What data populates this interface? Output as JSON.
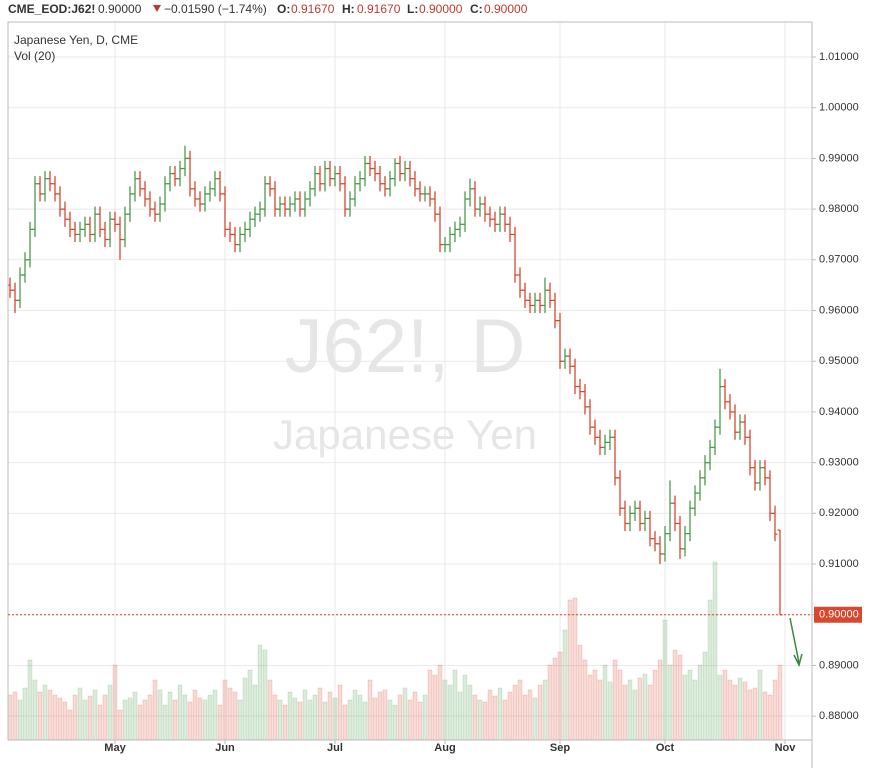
{
  "header": {
    "symbol": "CME_EOD:J62!",
    "last": "0.90000",
    "change": "−0.01590 (−1.74%)",
    "open_label": "O:",
    "open": "0.91670",
    "high_label": "H:",
    "high": "0.91670",
    "low_label": "L:",
    "low": "0.90000",
    "close_label": "C:",
    "close": "0.90000"
  },
  "chart_data": {
    "type": "ohlc",
    "title": "Japanese Yen, D, CME",
    "subtitle": "Vol (20)",
    "watermark": "J62!, D",
    "watermark_subtitle": "Japanese Yen",
    "up_color": "#4a9a4a",
    "down_color": "#d9472f",
    "grid": true,
    "last_price": 0.9,
    "last_price_label": "0.90000",
    "ylim": [
      0.8753,
      1.0169
    ],
    "yticks": [
      {
        "value": 0.88,
        "label": "0.88000"
      },
      {
        "value": 0.89,
        "label": "0.89000"
      },
      {
        "value": 0.9,
        "label": "0.90000"
      },
      {
        "value": 0.91,
        "label": "0.91000"
      },
      {
        "value": 0.92,
        "label": "0.92000"
      },
      {
        "value": 0.93,
        "label": "0.93000"
      },
      {
        "value": 0.94,
        "label": "0.94000"
      },
      {
        "value": 0.95,
        "label": "0.95000"
      },
      {
        "value": 0.96,
        "label": "0.96000"
      },
      {
        "value": 0.97,
        "label": "0.97000"
      },
      {
        "value": 0.98,
        "label": "0.98000"
      },
      {
        "value": 0.99,
        "label": "0.99000"
      },
      {
        "value": 1.0,
        "label": "1.00000"
      },
      {
        "value": 1.01,
        "label": "1.01000"
      }
    ],
    "xlim": [
      -0.4,
      160.4
    ],
    "xticks": [
      {
        "value": 21,
        "label": "May"
      },
      {
        "value": 43,
        "label": "Jun"
      },
      {
        "value": 65,
        "label": "Jul"
      },
      {
        "value": 87,
        "label": "Aug"
      },
      {
        "value": 110,
        "label": "Sep"
      },
      {
        "value": 131,
        "label": "Oct"
      },
      {
        "value": 155,
        "label": "Nov"
      }
    ],
    "volume_lim": [
      0,
      200
    ],
    "ohlc": [
      [
        0.965,
        0.9665,
        0.9625,
        0.964
      ],
      [
        0.964,
        0.9655,
        0.9595,
        0.962
      ],
      [
        0.962,
        0.9685,
        0.9605,
        0.967
      ],
      [
        0.967,
        0.9715,
        0.9655,
        0.97
      ],
      [
        0.97,
        0.9775,
        0.9685,
        0.976
      ],
      [
        0.976,
        0.9865,
        0.9745,
        0.985
      ],
      [
        0.985,
        0.9865,
        0.9815,
        0.983
      ],
      [
        0.983,
        0.9875,
        0.9815,
        0.986
      ],
      [
        0.986,
        0.9875,
        0.9835,
        0.985
      ],
      [
        0.985,
        0.9865,
        0.9815,
        0.983
      ],
      [
        0.983,
        0.9845,
        0.9785,
        0.98
      ],
      [
        0.98,
        0.9815,
        0.9765,
        0.978
      ],
      [
        0.978,
        0.9795,
        0.9745,
        0.976
      ],
      [
        0.976,
        0.9775,
        0.9735,
        0.975
      ],
      [
        0.975,
        0.9775,
        0.9735,
        0.976
      ],
      [
        0.976,
        0.9785,
        0.9745,
        0.977
      ],
      [
        0.977,
        0.9785,
        0.9735,
        0.975
      ],
      [
        0.975,
        0.9805,
        0.9735,
        0.979
      ],
      [
        0.979,
        0.9805,
        0.9745,
        0.976
      ],
      [
        0.976,
        0.9775,
        0.9725,
        0.974
      ],
      [
        0.974,
        0.9795,
        0.9725,
        0.978
      ],
      [
        0.978,
        0.9795,
        0.9755,
        0.977
      ],
      [
        0.977,
        0.9785,
        0.97,
        0.974
      ],
      [
        0.974,
        0.9805,
        0.9725,
        0.979
      ],
      [
        0.979,
        0.9845,
        0.9775,
        0.983
      ],
      [
        0.983,
        0.9875,
        0.9815,
        0.986
      ],
      [
        0.986,
        0.9875,
        0.9825,
        0.984
      ],
      [
        0.984,
        0.9855,
        0.9805,
        0.982
      ],
      [
        0.982,
        0.9835,
        0.9785,
        0.98
      ],
      [
        0.98,
        0.9815,
        0.9775,
        0.979
      ],
      [
        0.979,
        0.9825,
        0.9775,
        0.981
      ],
      [
        0.981,
        0.9865,
        0.9795,
        0.985
      ],
      [
        0.985,
        0.9885,
        0.9835,
        0.987
      ],
      [
        0.987,
        0.9885,
        0.9845,
        0.986
      ],
      [
        0.986,
        0.9895,
        0.9845,
        0.988
      ],
      [
        0.988,
        0.9925,
        0.9865,
        0.99
      ],
      [
        0.99,
        0.9915,
        0.9825,
        0.984
      ],
      [
        0.984,
        0.9855,
        0.9805,
        0.982
      ],
      [
        0.982,
        0.9835,
        0.9795,
        0.981
      ],
      [
        0.981,
        0.9845,
        0.9795,
        0.983
      ],
      [
        0.983,
        0.9855,
        0.9815,
        0.984
      ],
      [
        0.984,
        0.9875,
        0.9825,
        0.986
      ],
      [
        0.986,
        0.9875,
        0.9815,
        0.983
      ],
      [
        0.983,
        0.9845,
        0.9745,
        0.976
      ],
      [
        0.976,
        0.9775,
        0.9735,
        0.975
      ],
      [
        0.975,
        0.9765,
        0.9715,
        0.973
      ],
      [
        0.973,
        0.9765,
        0.9715,
        0.975
      ],
      [
        0.975,
        0.9775,
        0.9735,
        0.976
      ],
      [
        0.976,
        0.9795,
        0.9745,
        0.978
      ],
      [
        0.978,
        0.9805,
        0.9765,
        0.979
      ],
      [
        0.979,
        0.9815,
        0.9775,
        0.98
      ],
      [
        0.98,
        0.9865,
        0.9785,
        0.985
      ],
      [
        0.985,
        0.9865,
        0.9825,
        0.984
      ],
      [
        0.984,
        0.9855,
        0.9785,
        0.98
      ],
      [
        0.98,
        0.9825,
        0.9785,
        0.981
      ],
      [
        0.981,
        0.9825,
        0.9785,
        0.98
      ],
      [
        0.98,
        0.9825,
        0.9785,
        0.981
      ],
      [
        0.981,
        0.9835,
        0.9795,
        0.982
      ],
      [
        0.982,
        0.9835,
        0.9785,
        0.98
      ],
      [
        0.98,
        0.9835,
        0.9785,
        0.982
      ],
      [
        0.982,
        0.9855,
        0.9805,
        0.984
      ],
      [
        0.984,
        0.9885,
        0.9825,
        0.987
      ],
      [
        0.987,
        0.9885,
        0.9835,
        0.985
      ],
      [
        0.985,
        0.9895,
        0.9835,
        0.988
      ],
      [
        0.988,
        0.9895,
        0.9845,
        0.986
      ],
      [
        0.986,
        0.9885,
        0.9845,
        0.987
      ],
      [
        0.987,
        0.9885,
        0.9835,
        0.985
      ],
      [
        0.985,
        0.9865,
        0.9785,
        0.98
      ],
      [
        0.98,
        0.9835,
        0.9785,
        0.982
      ],
      [
        0.982,
        0.9865,
        0.9805,
        0.985
      ],
      [
        0.985,
        0.9875,
        0.9835,
        0.986
      ],
      [
        0.986,
        0.9905,
        0.9845,
        0.989
      ],
      [
        0.989,
        0.9905,
        0.9865,
        0.988
      ],
      [
        0.988,
        0.9895,
        0.9855,
        0.987
      ],
      [
        0.987,
        0.9885,
        0.9835,
        0.985
      ],
      [
        0.985,
        0.9865,
        0.9825,
        0.984
      ],
      [
        0.984,
        0.9875,
        0.9825,
        0.986
      ],
      [
        0.986,
        0.99,
        0.9845,
        0.989
      ],
      [
        0.989,
        0.9905,
        0.9855,
        0.987
      ],
      [
        0.987,
        0.9895,
        0.9855,
        0.988
      ],
      [
        0.988,
        0.9895,
        0.9845,
        0.986
      ],
      [
        0.986,
        0.9875,
        0.9825,
        0.984
      ],
      [
        0.984,
        0.9855,
        0.9815,
        0.983
      ],
      [
        0.983,
        0.9845,
        0.9815,
        0.983
      ],
      [
        0.983,
        0.9845,
        0.9805,
        0.982
      ],
      [
        0.982,
        0.9835,
        0.9775,
        0.979
      ],
      [
        0.979,
        0.9805,
        0.9715,
        0.973
      ],
      [
        0.973,
        0.9745,
        0.9715,
        0.973
      ],
      [
        0.973,
        0.9765,
        0.9715,
        0.975
      ],
      [
        0.975,
        0.9775,
        0.9735,
        0.976
      ],
      [
        0.976,
        0.9785,
        0.9745,
        0.977
      ],
      [
        0.977,
        0.9835,
        0.9755,
        0.982
      ],
      [
        0.982,
        0.986,
        0.9805,
        0.984
      ],
      [
        0.984,
        0.9855,
        0.9785,
        0.98
      ],
      [
        0.98,
        0.9825,
        0.9785,
        0.981
      ],
      [
        0.981,
        0.9825,
        0.9775,
        0.979
      ],
      [
        0.979,
        0.9805,
        0.9765,
        0.978
      ],
      [
        0.978,
        0.9795,
        0.9755,
        0.977
      ],
      [
        0.977,
        0.9805,
        0.9755,
        0.979
      ],
      [
        0.979,
        0.9805,
        0.9755,
        0.977
      ],
      [
        0.977,
        0.9785,
        0.9735,
        0.975
      ],
      [
        0.975,
        0.9765,
        0.9655,
        0.967
      ],
      [
        0.967,
        0.9685,
        0.9625,
        0.964
      ],
      [
        0.964,
        0.9655,
        0.9605,
        0.962
      ],
      [
        0.962,
        0.9635,
        0.9595,
        0.961
      ],
      [
        0.961,
        0.9635,
        0.9595,
        0.962
      ],
      [
        0.962,
        0.9635,
        0.9595,
        0.961
      ],
      [
        0.961,
        0.9665,
        0.9595,
        0.964
      ],
      [
        0.964,
        0.9655,
        0.9605,
        0.962
      ],
      [
        0.962,
        0.9635,
        0.9565,
        0.958
      ],
      [
        0.958,
        0.9595,
        0.9485,
        0.95
      ],
      [
        0.95,
        0.9525,
        0.9485,
        0.951
      ],
      [
        0.951,
        0.9525,
        0.9475,
        0.949
      ],
      [
        0.949,
        0.9505,
        0.9435,
        0.945
      ],
      [
        0.945,
        0.9465,
        0.9425,
        0.944
      ],
      [
        0.944,
        0.9455,
        0.9395,
        0.941
      ],
      [
        0.941,
        0.9425,
        0.9355,
        0.937
      ],
      [
        0.937,
        0.9385,
        0.9335,
        0.935
      ],
      [
        0.935,
        0.9365,
        0.9315,
        0.933
      ],
      [
        0.933,
        0.9355,
        0.9315,
        0.934
      ],
      [
        0.934,
        0.9365,
        0.9325,
        0.935
      ],
      [
        0.935,
        0.9365,
        0.9255,
        0.927
      ],
      [
        0.927,
        0.9285,
        0.9195,
        0.921
      ],
      [
        0.921,
        0.9225,
        0.9165,
        0.918
      ],
      [
        0.918,
        0.9215,
        0.9165,
        0.92
      ],
      [
        0.92,
        0.9225,
        0.9185,
        0.921
      ],
      [
        0.921,
        0.9225,
        0.9165,
        0.918
      ],
      [
        0.918,
        0.9205,
        0.9165,
        0.919
      ],
      [
        0.919,
        0.9205,
        0.9135,
        0.915
      ],
      [
        0.915,
        0.9165,
        0.9125,
        0.914
      ],
      [
        0.914,
        0.9155,
        0.91,
        0.912
      ],
      [
        0.912,
        0.9175,
        0.9105,
        0.916
      ],
      [
        0.916,
        0.9265,
        0.9145,
        0.922
      ],
      [
        0.922,
        0.9235,
        0.9165,
        0.918
      ],
      [
        0.918,
        0.9195,
        0.911,
        0.913
      ],
      [
        0.913,
        0.9175,
        0.9115,
        0.916
      ],
      [
        0.916,
        0.9225,
        0.9145,
        0.921
      ],
      [
        0.921,
        0.9255,
        0.9195,
        0.924
      ],
      [
        0.924,
        0.9285,
        0.9225,
        0.927
      ],
      [
        0.927,
        0.9315,
        0.9255,
        0.93
      ],
      [
        0.93,
        0.9345,
        0.9285,
        0.933
      ],
      [
        0.933,
        0.9385,
        0.9315,
        0.937
      ],
      [
        0.937,
        0.9485,
        0.9355,
        0.945
      ],
      [
        0.945,
        0.9465,
        0.9405,
        0.942
      ],
      [
        0.942,
        0.9435,
        0.9385,
        0.94
      ],
      [
        0.94,
        0.9415,
        0.9345,
        0.936
      ],
      [
        0.936,
        0.9395,
        0.9345,
        0.938
      ],
      [
        0.938,
        0.9395,
        0.9335,
        0.935
      ],
      [
        0.935,
        0.9365,
        0.9275,
        0.929
      ],
      [
        0.929,
        0.9305,
        0.9245,
        0.926
      ],
      [
        0.926,
        0.9305,
        0.9245,
        0.929
      ],
      [
        0.929,
        0.9305,
        0.9255,
        0.927
      ],
      [
        0.927,
        0.9285,
        0.9185,
        0.92
      ],
      [
        0.92,
        0.9215,
        0.9145,
        0.9159
      ],
      [
        0.9167,
        0.9167,
        0.9,
        0.9
      ]
    ],
    "volume": [
      45,
      48,
      40,
      52,
      80,
      60,
      48,
      55,
      50,
      45,
      42,
      38,
      30,
      45,
      52,
      40,
      44,
      50,
      35,
      45,
      55,
      75,
      30,
      40,
      42,
      48,
      35,
      40,
      45,
      60,
      50,
      35,
      48,
      40,
      55,
      45,
      38,
      50,
      42,
      40,
      45,
      50,
      35,
      60,
      52,
      48,
      40,
      62,
      70,
      55,
      95,
      90,
      60,
      45,
      40,
      35,
      48,
      42,
      38,
      50,
      40,
      45,
      52,
      38,
      48,
      42,
      55,
      35,
      40,
      50,
      45,
      38,
      60,
      42,
      48,
      50,
      40,
      35,
      45,
      52,
      40,
      48,
      38,
      45,
      70,
      65,
      75,
      60,
      55,
      70,
      48,
      65,
      55,
      45,
      40,
      38,
      50,
      44,
      52,
      40,
      48,
      55,
      60,
      45,
      50,
      42,
      55,
      60,
      75,
      82,
      88,
      110,
      140,
      142,
      95,
      80,
      65,
      70,
      60,
      75,
      58,
      80,
      70,
      55,
      60,
      50,
      62,
      66,
      55,
      70,
      80,
      120,
      75,
      90,
      85,
      65,
      70,
      60,
      75,
      88,
      140,
      178,
      65,
      70,
      60,
      55,
      62,
      58,
      50,
      52,
      70,
      48,
      45,
      60,
      75
    ]
  }
}
